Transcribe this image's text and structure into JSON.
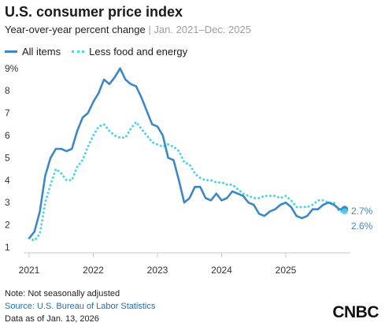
{
  "header": {
    "title": "U.S. consumer price index",
    "subtitle_main": "Year-over-year percent change",
    "subtitle_sep": " | ",
    "subtitle_range": "Jan. 2021–Dec. 2025"
  },
  "legend": {
    "all_items": "All items",
    "core": "Less food and energy"
  },
  "colors": {
    "all_items": "#3d87c7",
    "core": "#4fd4e6",
    "axis": "#c8c8c8",
    "text": "#1a1a1a",
    "source_link": "#1f6fb2"
  },
  "end_labels": {
    "all_items": "2.7%",
    "core": "2.6%"
  },
  "footer": {
    "note": "Note: Not seasonally adjusted",
    "source_prefix": "Source: ",
    "source_name": "U.S. Bureau of Labor Statistics",
    "data_as_of": "Data as of Jan. 13, 2026"
  },
  "logo": "CNBC",
  "chart_data": {
    "type": "line",
    "title": "U.S. consumer price index",
    "subtitle": "Year-over-year percent change | Jan. 2021–Dec. 2025",
    "xlabel": "",
    "ylabel": "",
    "x_ticks": [
      "2021",
      "2022",
      "2023",
      "2024",
      "2025"
    ],
    "y_ticks": [
      "1",
      "2",
      "3",
      "4",
      "5",
      "6",
      "7",
      "8",
      "9%"
    ],
    "ylim": [
      1,
      9
    ],
    "grid": false,
    "legend_position": "top-left",
    "x": [
      "2021-01",
      "2021-02",
      "2021-03",
      "2021-04",
      "2021-05",
      "2021-06",
      "2021-07",
      "2021-08",
      "2021-09",
      "2021-10",
      "2021-11",
      "2021-12",
      "2022-01",
      "2022-02",
      "2022-03",
      "2022-04",
      "2022-05",
      "2022-06",
      "2022-07",
      "2022-08",
      "2022-09",
      "2022-10",
      "2022-11",
      "2022-12",
      "2023-01",
      "2023-02",
      "2023-03",
      "2023-04",
      "2023-05",
      "2023-06",
      "2023-07",
      "2023-08",
      "2023-09",
      "2023-10",
      "2023-11",
      "2023-12",
      "2024-01",
      "2024-02",
      "2024-03",
      "2024-04",
      "2024-05",
      "2024-06",
      "2024-07",
      "2024-08",
      "2024-09",
      "2024-10",
      "2024-11",
      "2024-12",
      "2025-01",
      "2025-02",
      "2025-03",
      "2025-04",
      "2025-05",
      "2025-06",
      "2025-07",
      "2025-08",
      "2025-09",
      "2025-10",
      "2025-11",
      "2025-12"
    ],
    "series": [
      {
        "name": "All items",
        "values": [
          1.4,
          1.7,
          2.6,
          4.2,
          5.0,
          5.4,
          5.4,
          5.3,
          5.4,
          6.2,
          6.8,
          7.0,
          7.5,
          7.9,
          8.5,
          8.3,
          8.6,
          9.0,
          8.5,
          8.3,
          8.2,
          7.7,
          7.1,
          6.5,
          6.4,
          6.0,
          5.0,
          4.9,
          4.0,
          3.0,
          3.2,
          3.7,
          3.7,
          3.2,
          3.1,
          3.4,
          3.1,
          3.2,
          3.5,
          3.4,
          3.3,
          3.0,
          2.9,
          2.5,
          2.4,
          2.6,
          2.7,
          2.9,
          3.0,
          2.8,
          2.4,
          2.3,
          2.4,
          2.7,
          2.7,
          2.9,
          3.0,
          2.9,
          2.7,
          2.7
        ]
      },
      {
        "name": "Less food and energy",
        "values": [
          1.4,
          1.3,
          1.6,
          3.0,
          3.8,
          4.5,
          4.3,
          4.0,
          4.0,
          4.6,
          4.9,
          5.5,
          6.0,
          6.4,
          6.5,
          6.2,
          6.0,
          5.9,
          5.9,
          6.3,
          6.6,
          6.3,
          6.0,
          5.7,
          5.6,
          5.5,
          5.6,
          5.5,
          5.3,
          4.8,
          4.7,
          4.3,
          4.1,
          4.0,
          4.0,
          3.9,
          3.9,
          3.8,
          3.8,
          3.6,
          3.4,
          3.3,
          3.2,
          3.2,
          3.3,
          3.3,
          3.3,
          3.2,
          3.3,
          3.1,
          2.8,
          2.8,
          2.8,
          2.9,
          3.1,
          3.1,
          3.0,
          3.0,
          2.6,
          2.6
        ]
      }
    ]
  }
}
